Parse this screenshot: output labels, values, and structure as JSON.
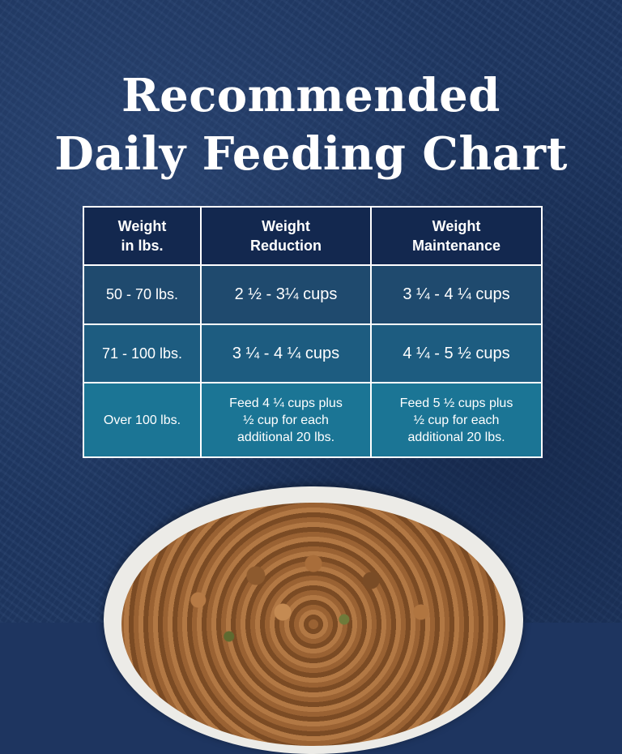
{
  "title": {
    "line1": "Recommended",
    "line2": "Daily Feeding Chart"
  },
  "table": {
    "headers": [
      {
        "line1": "Weight",
        "line2": "in lbs."
      },
      {
        "line1": "Weight",
        "line2": "Reduction"
      },
      {
        "line1": "Weight",
        "line2": "Maintenance"
      }
    ],
    "rows": [
      {
        "weight": "50 - 70 lbs.",
        "reduction": "2 ½ - 3¼ cups",
        "maintenance": "3 ¼ - 4 ¼ cups"
      },
      {
        "weight": "71 - 100 lbs.",
        "reduction": "3 ¼ - 4 ¼ cups",
        "maintenance": "4 ¼ - 5 ½ cups"
      },
      {
        "weight": "Over 100 lbs.",
        "reduction": [
          "Feed 4 ¼ cups plus",
          "½ cup for each",
          "additional 20 lbs."
        ],
        "maintenance": [
          "Feed 5 ½ cups plus",
          "½ cup for each",
          "additional 20 lbs."
        ]
      }
    ]
  },
  "colors": {
    "background": "#1f3864",
    "header": "#13284f",
    "row1": "#1f4a6e",
    "row2": "#1d5c80",
    "row3": "#1b7595"
  }
}
